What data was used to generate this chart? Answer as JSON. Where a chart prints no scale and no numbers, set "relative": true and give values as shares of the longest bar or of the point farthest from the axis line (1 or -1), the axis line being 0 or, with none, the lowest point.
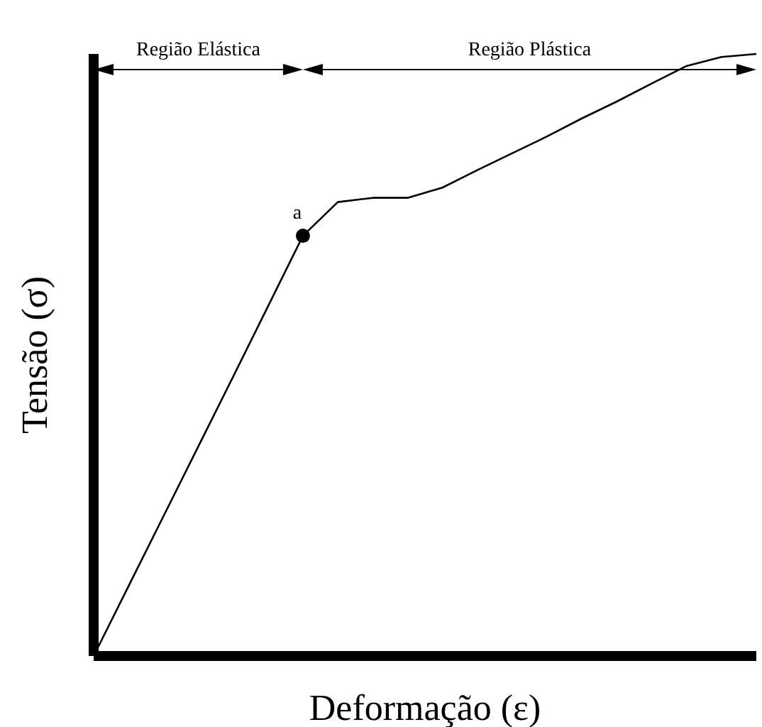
{
  "chart_data": {
    "type": "line",
    "relative": true,
    "xlabel": "Deformação (ε)",
    "ylabel": "Tensão (σ)",
    "categories": [
      null,
      null,
      null,
      null,
      null,
      null,
      null,
      null,
      null,
      null,
      null,
      null,
      null,
      null,
      null,
      null,
      null,
      null,
      null,
      null
    ],
    "series": [
      {
        "color": "#000000",
        "values": [
          0,
          0.116,
          0.232,
          0.348,
          0.464,
          0.581,
          0.698,
          0.754,
          0.761,
          0.761,
          0.778,
          0.807,
          0.835,
          0.863,
          0.893,
          0.921,
          0.951,
          0.98,
          0.995,
          1
        ]
      }
    ],
    "annotations": [
      "Região Elástica",
      "Região Plástica",
      {
        "text": "a",
        "y": 0.698
      }
    ]
  }
}
